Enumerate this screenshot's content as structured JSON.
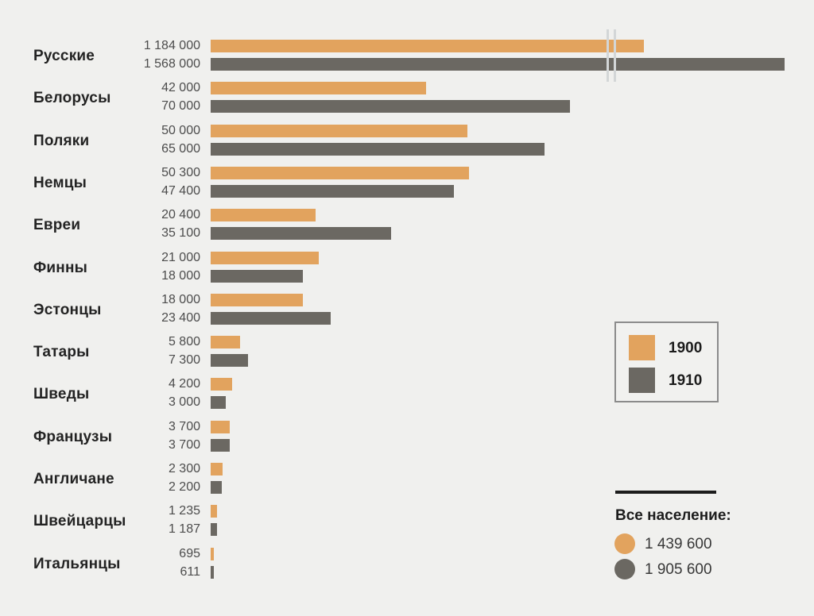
{
  "chart_data": {
    "type": "bar",
    "orientation": "horizontal",
    "unit": "people",
    "series": [
      {
        "name": "1900",
        "color": "#e2a35e"
      },
      {
        "name": "1910",
        "color": "#6b6862"
      }
    ],
    "rows": [
      {
        "category": "Русские",
        "v1900": 1184000,
        "v1910": 1568000,
        "label_1900": "1 184 000",
        "label_1910": "1 568 000",
        "truncated": true
      },
      {
        "category": "Белорусы",
        "v1900": 42000,
        "v1910": 70000,
        "label_1900": "42 000",
        "label_1910": "70 000"
      },
      {
        "category": "Поляки",
        "v1900": 50000,
        "v1910": 65000,
        "label_1900": "50 000",
        "label_1910": "65 000"
      },
      {
        "category": "Немцы",
        "v1900": 50300,
        "v1910": 47400,
        "label_1900": "50 300",
        "label_1910": "47 400"
      },
      {
        "category": "Евреи",
        "v1900": 20400,
        "v1910": 35100,
        "label_1900": "20 400",
        "label_1910": "35 100"
      },
      {
        "category": "Финны",
        "v1900": 21000,
        "v1910": 18000,
        "label_1900": "21 000",
        "label_1910": "18 000"
      },
      {
        "category": "Эстонцы",
        "v1900": 18000,
        "v1910": 23400,
        "label_1900": "18 000",
        "label_1910": "23 400"
      },
      {
        "category": "Татары",
        "v1900": 5800,
        "v1910": 7300,
        "label_1900": "5 800",
        "label_1910": "7 300"
      },
      {
        "category": "Шведы",
        "v1900": 4200,
        "v1910": 3000,
        "label_1900": "4 200",
        "label_1910": "3 000"
      },
      {
        "category": "Французы",
        "v1900": 3700,
        "v1910": 3700,
        "label_1900": "3 700",
        "label_1910": "3 700"
      },
      {
        "category": "Англичане",
        "v1900": 2300,
        "v1910": 2200,
        "label_1900": "2 300",
        "label_1910": "2 200"
      },
      {
        "category": "Швейцарцы",
        "v1900": 1235,
        "v1910": 1187,
        "label_1900": "1 235",
        "label_1910": "1 187"
      },
      {
        "category": "Итальянцы",
        "v1900": 695,
        "v1910": 611,
        "label_1900": "695",
        "label_1910": "611"
      }
    ],
    "axis_break": true,
    "totals": {
      "heading": "Все население:",
      "t1900": "1 439 600",
      "t1910": "1 905 600"
    }
  }
}
